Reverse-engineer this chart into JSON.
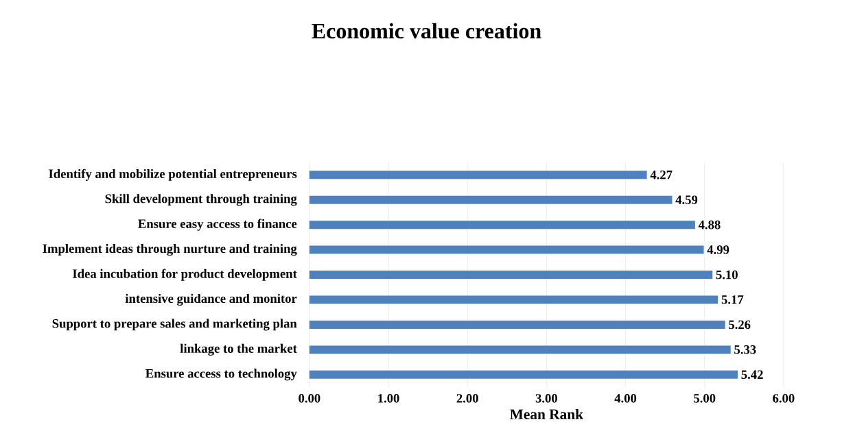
{
  "chart_data": {
    "type": "bar",
    "orientation": "horizontal",
    "title": "Economic value creation",
    "xlabel": "Mean Rank",
    "categories": [
      "Identify and mobilize potential entrepreneurs",
      "Skill development through training",
      "Ensure easy access to finance",
      "Implement ideas through nurture and training",
      "Idea incubation for product development",
      "intensive guidance and monitor",
      "Support to prepare sales and marketing plan",
      "linkage to the market",
      "Ensure access to technology"
    ],
    "values": [
      4.27,
      4.59,
      4.88,
      4.99,
      5.1,
      5.17,
      5.26,
      5.33,
      5.42
    ],
    "value_labels": [
      "4.27",
      "4.59",
      "4.88",
      "4.99",
      "5.10",
      "5.17",
      "5.26",
      "5.33",
      "5.42"
    ],
    "color": "#4f81bd",
    "xlim": [
      0,
      6
    ],
    "xticks": [
      {
        "value": 0,
        "label": "0.00"
      },
      {
        "value": 1,
        "label": "1.00"
      },
      {
        "value": 2,
        "label": "2.00"
      },
      {
        "value": 3,
        "label": "3.00"
      },
      {
        "value": 4,
        "label": "4.00"
      },
      {
        "value": 5,
        "label": "5.00"
      },
      {
        "value": 6,
        "label": "6.00"
      }
    ],
    "grid": "x"
  }
}
